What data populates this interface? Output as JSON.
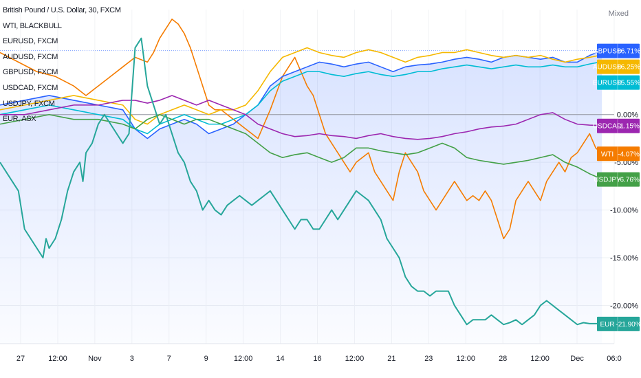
{
  "chart_data": {
    "type": "line",
    "title": "British Pound / U.S. Dollar, 30, FXCM",
    "scale_mode": "Mixed",
    "legend_entries": [
      "WTI, BLACKBULL",
      "EURUSD, FXCM",
      "AUDUSD, FXCM",
      "GBPUSD, FXCM",
      "USDCAD, FXCM",
      "USDJPY, FXCM",
      "EUR, ASX"
    ],
    "x_ticks": [
      "27",
      "12:00",
      "Nov",
      "3",
      "7",
      "9",
      "12:00",
      "14",
      "16",
      "12:00",
      "21",
      "23",
      "12:00",
      "28",
      "12:00",
      "Dec",
      "06:0"
    ],
    "y_ticks": [
      {
        "value": 0,
        "label": "0.00%"
      },
      {
        "value": -5,
        "label": "-5.00%"
      },
      {
        "value": -10,
        "label": "-10.00%"
      },
      {
        "value": -15,
        "label": "-15.00%"
      },
      {
        "value": -20,
        "label": "-20.00%"
      }
    ],
    "ylim": [
      -24,
      11
    ],
    "xlim": [
      0,
      100
    ],
    "grid": true,
    "series": [
      {
        "name": "WTI",
        "color": "#f57c00",
        "last_label": "-4.07%",
        "x": [
          0,
          3,
          6,
          9,
          12,
          14,
          16,
          18,
          20,
          22,
          24,
          25,
          26,
          27,
          28,
          29,
          30,
          31,
          32,
          33,
          34,
          35,
          36,
          37,
          38,
          39,
          40,
          41,
          42,
          44,
          46,
          48,
          50,
          51,
          52,
          53,
          54,
          55,
          56,
          57,
          58,
          60,
          61,
          62,
          63,
          64,
          65,
          66,
          67,
          68,
          69,
          70,
          71,
          72,
          73,
          74,
          75,
          76,
          77,
          78,
          79,
          80,
          81,
          82,
          83,
          84,
          85,
          86,
          87,
          88,
          89,
          90,
          91,
          92,
          93,
          94,
          95,
          96,
          97,
          98
        ],
        "y": [
          6.5,
          5.5,
          4.5,
          4,
          3,
          2,
          3,
          4,
          5,
          6,
          5.5,
          6.5,
          8,
          9,
          10,
          9.5,
          8.5,
          7,
          5,
          3,
          1,
          0.5,
          0.5,
          0,
          -0.5,
          -1,
          -1.5,
          -2,
          -2.5,
          0.5,
          4,
          6,
          3,
          2,
          0,
          -2,
          -3,
          -4,
          -5,
          -6,
          -5,
          -4,
          -6,
          -7,
          -8,
          -9,
          -6,
          -4,
          -5,
          -6,
          -8,
          -9,
          -10,
          -9,
          -8,
          -7,
          -8,
          -9,
          -8.5,
          -9,
          -8,
          -9,
          -11,
          -13,
          -12,
          -9,
          -8,
          -7,
          -8,
          -9,
          -7,
          -6,
          -5,
          -6,
          -4.5,
          -4,
          -3,
          -2,
          -3.5,
          -4.07
        ]
      },
      {
        "name": "GBPUSD",
        "color": "#2962ff",
        "last_label": "+6.71%",
        "x": [
          0,
          4,
          8,
          12,
          16,
          20,
          22,
          24,
          26,
          28,
          30,
          32,
          34,
          36,
          38,
          40,
          42,
          44,
          46,
          48,
          50,
          52,
          54,
          56,
          58,
          60,
          62,
          64,
          66,
          68,
          70,
          72,
          74,
          76,
          78,
          80,
          82,
          84,
          86,
          88,
          90,
          92,
          94,
          96,
          98
        ],
        "y": [
          1,
          1.5,
          2,
          1.5,
          1,
          0.5,
          -1.5,
          -2.5,
          -1.5,
          -1,
          -0.5,
          -1,
          -2,
          -1.5,
          -1,
          0,
          1,
          3,
          4,
          4.5,
          5,
          5.5,
          5.3,
          5,
          5.3,
          5.5,
          5,
          4.5,
          5,
          5.2,
          5.3,
          5.5,
          5.8,
          6,
          5.8,
          5.5,
          6,
          6.2,
          6,
          5.8,
          6,
          5.5,
          5.5,
          6.2,
          6.71
        ]
      },
      {
        "name": "AUDUSD",
        "color": "#f5b800",
        "last_label": "+6.25%",
        "x": [
          0,
          4,
          8,
          12,
          16,
          20,
          22,
          24,
          26,
          28,
          30,
          32,
          34,
          36,
          38,
          40,
          42,
          44,
          46,
          48,
          50,
          52,
          54,
          56,
          58,
          60,
          62,
          64,
          66,
          68,
          70,
          72,
          74,
          76,
          78,
          80,
          82,
          84,
          86,
          88,
          90,
          92,
          94,
          96,
          98
        ],
        "y": [
          0.5,
          1,
          1.5,
          2,
          1.5,
          1,
          -0.5,
          -1,
          0,
          0.5,
          1,
          0.5,
          0,
          0.5,
          0.5,
          1,
          2.5,
          4.5,
          6,
          6.5,
          7,
          6.5,
          6.2,
          6,
          6.5,
          6.8,
          6.5,
          6,
          5.5,
          6,
          6.2,
          6.5,
          6.5,
          6.8,
          6.5,
          6.2,
          6,
          6.2,
          6,
          6.2,
          5.8,
          5.5,
          5.8,
          6,
          6.25
        ]
      },
      {
        "name": "EURUSD",
        "color": "#00bcd4",
        "last_label": "+5.55%",
        "x": [
          0,
          4,
          8,
          12,
          16,
          20,
          22,
          24,
          26,
          28,
          30,
          32,
          34,
          36,
          38,
          40,
          42,
          44,
          46,
          48,
          50,
          52,
          54,
          56,
          58,
          60,
          62,
          64,
          66,
          68,
          70,
          72,
          74,
          76,
          78,
          80,
          82,
          84,
          86,
          88,
          90,
          92,
          94,
          96,
          98
        ],
        "y": [
          0,
          0.5,
          1,
          0.5,
          0,
          -0.5,
          -1.5,
          -2,
          -1,
          -0.5,
          0,
          -0.5,
          -1,
          -1,
          -0.5,
          0,
          1,
          2.5,
          3.5,
          4,
          4.5,
          4.5,
          4.2,
          4,
          4.3,
          4.5,
          4.2,
          4,
          4.2,
          4.5,
          4.5,
          4.8,
          5,
          5.2,
          5,
          4.8,
          5,
          5.2,
          5,
          5,
          5.2,
          5,
          5,
          5.3,
          5.55
        ]
      },
      {
        "name": "USDCAD",
        "color": "#9c27b0",
        "last_label": "-1.15%",
        "x": [
          0,
          4,
          8,
          12,
          16,
          20,
          22,
          24,
          26,
          28,
          30,
          32,
          34,
          36,
          38,
          40,
          42,
          44,
          46,
          48,
          50,
          52,
          54,
          56,
          58,
          60,
          62,
          64,
          66,
          68,
          70,
          72,
          74,
          76,
          78,
          80,
          82,
          84,
          86,
          88,
          90,
          92,
          94,
          96,
          98
        ],
        "y": [
          0,
          0,
          0.5,
          1,
          1,
          1.5,
          1.5,
          1.2,
          1.5,
          2,
          1.5,
          1,
          1.5,
          1,
          0.5,
          0,
          -1,
          -1.5,
          -2,
          -2.3,
          -2.2,
          -2,
          -2.2,
          -2.3,
          -2.5,
          -2.2,
          -2,
          -2.3,
          -2.5,
          -2.6,
          -2.5,
          -2.3,
          -2,
          -1.8,
          -1.5,
          -1.3,
          -1.2,
          -1,
          -0.5,
          0,
          0.2,
          -0.5,
          -1,
          -1.1,
          -1.15
        ]
      },
      {
        "name": "USDJPY",
        "color": "#43a047",
        "last_label": "-6.76%",
        "x": [
          0,
          4,
          8,
          12,
          16,
          20,
          22,
          24,
          26,
          28,
          30,
          32,
          34,
          36,
          38,
          40,
          42,
          44,
          46,
          48,
          50,
          52,
          54,
          56,
          58,
          60,
          62,
          64,
          66,
          68,
          70,
          72,
          74,
          76,
          78,
          80,
          82,
          84,
          86,
          88,
          90,
          92,
          94,
          96,
          98
        ],
        "y": [
          -1,
          -0.5,
          0,
          -0.5,
          -0.5,
          -1,
          -1.5,
          -0.5,
          0,
          -0.5,
          -1,
          -0.5,
          -0.5,
          -1,
          -1.5,
          -2,
          -3,
          -4,
          -4.5,
          -4.2,
          -4,
          -4.5,
          -5,
          -4.5,
          -3.5,
          -3.5,
          -3.8,
          -4,
          -4.2,
          -4,
          -3.5,
          -3,
          -3.5,
          -4.5,
          -4.8,
          -5,
          -5.2,
          -5,
          -4.8,
          -4.5,
          -4.2,
          -5,
          -5.5,
          -6.2,
          -6.76
        ]
      },
      {
        "name": "EUR",
        "color": "#26a69a",
        "last_label": "-21.90%",
        "x": [
          0,
          2,
          3,
          4,
          6,
          7,
          7.5,
          8,
          9,
          10,
          11,
          12,
          13,
          13.5,
          14,
          15,
          16,
          17,
          18,
          19,
          20,
          21,
          22,
          23,
          24,
          25,
          26,
          27,
          28,
          29,
          30,
          31,
          32,
          33,
          34,
          35,
          36,
          37,
          38,
          39,
          40,
          41,
          42,
          43,
          44,
          45,
          46,
          47,
          48,
          49,
          50,
          51,
          52,
          53,
          54,
          55,
          56,
          57,
          58,
          59,
          60,
          61,
          62,
          63,
          64,
          65,
          66,
          67,
          68,
          69,
          70,
          71,
          72,
          73,
          74,
          75,
          76,
          77,
          78,
          79,
          80,
          81,
          82,
          83,
          84,
          85,
          86,
          87,
          88,
          89,
          90,
          91,
          92,
          93,
          94,
          95,
          96,
          97,
          98
        ],
        "y": [
          -5,
          -7,
          -8,
          -12,
          -14,
          -15,
          -13,
          -14,
          -13,
          -11,
          -8,
          -6,
          -5,
          -7,
          -4,
          -3,
          -1,
          0,
          -1,
          -2,
          -3,
          -2,
          7,
          8,
          3,
          1,
          -1,
          0,
          -2,
          -4,
          -5,
          -7,
          -8,
          -10,
          -9,
          -10,
          -10.5,
          -9.5,
          -9,
          -8.5,
          -9,
          -9.5,
          -9,
          -8.5,
          -8,
          -9,
          -10,
          -11,
          -12,
          -11,
          -11,
          -12,
          -12,
          -11,
          -10,
          -11,
          -10,
          -9,
          -8,
          -8.5,
          -9,
          -10,
          -11,
          -13,
          -14,
          -15,
          -17,
          -18,
          -18.5,
          -18.5,
          -19,
          -18.5,
          -18.5,
          -18.5,
          -20,
          -21,
          -22,
          -21.5,
          -21.5,
          -21.5,
          -21,
          -21.5,
          -22,
          -21.8,
          -21.5,
          -22,
          -21.5,
          -21,
          -20,
          -19.5,
          -20,
          -20.5,
          -21,
          -21.5,
          -22,
          -21.8,
          -21.9,
          -21.9,
          -21.9
        ]
      }
    ]
  }
}
